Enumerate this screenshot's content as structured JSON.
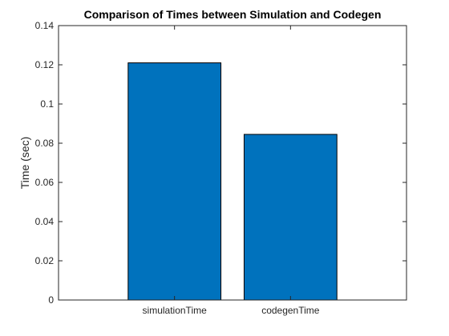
{
  "chart_data": {
    "type": "bar",
    "title": "Comparison of Times between Simulation and Codegen",
    "xlabel": "",
    "ylabel": "Time (sec)",
    "categories": [
      "simulationTime",
      "codegenTime"
    ],
    "values": [
      0.121,
      0.0845
    ],
    "ylim": [
      0,
      0.14
    ],
    "yticks": [
      0,
      0.02,
      0.04,
      0.06,
      0.08,
      0.1,
      0.12,
      0.14
    ],
    "ytick_labels": [
      "0",
      "0.02",
      "0.04",
      "0.06",
      "0.08",
      "0.1",
      "0.12",
      "0.14"
    ],
    "xlim": [
      0,
      3
    ],
    "grid": false,
    "bar_color": "#0072BD",
    "bar_edge_color": "#000000",
    "axis_color": "#262626"
  }
}
